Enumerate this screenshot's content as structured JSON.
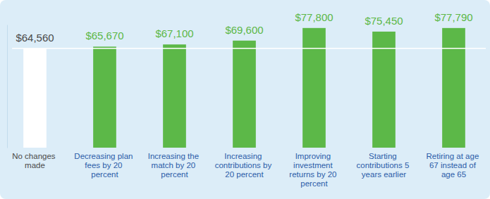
{
  "chart_data": {
    "type": "bar",
    "categories": [
      "No changes made",
      "Decreasing plan fees by 20 percent",
      "Increasing the match by 20 percent",
      "Increasing contributions by 20 percent",
      "Improving investment returns by 20 percent",
      "Starting contributions 5 years earlier",
      "Retiring at age 67 instead of age 65"
    ],
    "values": [
      64560,
      65670,
      67100,
      69600,
      77800,
      75450,
      77790
    ],
    "value_labels": [
      "$64,560",
      "$65,670",
      "$67,100",
      "$69,600",
      "$77,800",
      "$75,450",
      "$77,790"
    ],
    "colors": [
      "#ffffff",
      "#5cb848",
      "#5cb848",
      "#5cb848",
      "#5cb848",
      "#5cb848",
      "#5cb848"
    ],
    "ylim": [
      0,
      80000
    ],
    "yticks": [],
    "tick_labels": false,
    "data_labels": true,
    "grid": false
  }
}
